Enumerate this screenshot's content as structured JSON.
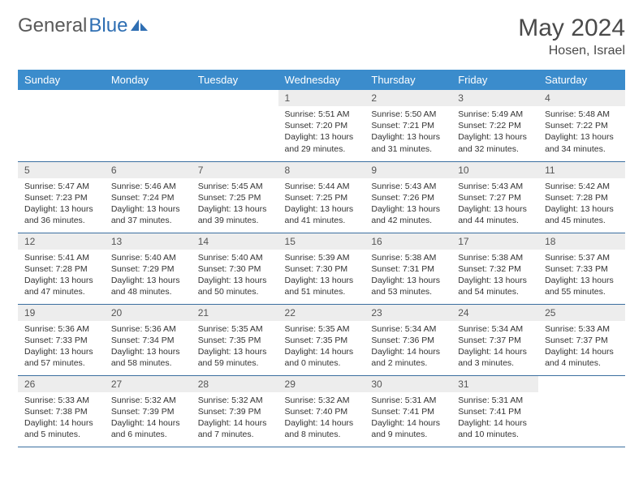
{
  "logo": {
    "part1": "General",
    "part2": "Blue"
  },
  "title": "May 2024",
  "location": "Hosen, Israel",
  "colors": {
    "header_bg": "#3b8ccc",
    "header_text": "#ffffff",
    "daynum_bg": "#ededed",
    "row_border": "#3b6fa0",
    "logo_gray": "#5a5a5a",
    "logo_blue": "#2f6fb3"
  },
  "typography": {
    "title_fontsize": 30,
    "location_fontsize": 16,
    "dayheader_fontsize": 13,
    "daynum_fontsize": 12,
    "daytext_fontsize": 10.5
  },
  "day_headers": [
    "Sunday",
    "Monday",
    "Tuesday",
    "Wednesday",
    "Thursday",
    "Friday",
    "Saturday"
  ],
  "weeks": [
    [
      null,
      null,
      null,
      {
        "n": "1",
        "sunrise": "5:51 AM",
        "sunset": "7:20 PM",
        "dl_h": 13,
        "dl_m": 29
      },
      {
        "n": "2",
        "sunrise": "5:50 AM",
        "sunset": "7:21 PM",
        "dl_h": 13,
        "dl_m": 31
      },
      {
        "n": "3",
        "sunrise": "5:49 AM",
        "sunset": "7:22 PM",
        "dl_h": 13,
        "dl_m": 32
      },
      {
        "n": "4",
        "sunrise": "5:48 AM",
        "sunset": "7:22 PM",
        "dl_h": 13,
        "dl_m": 34
      }
    ],
    [
      {
        "n": "5",
        "sunrise": "5:47 AM",
        "sunset": "7:23 PM",
        "dl_h": 13,
        "dl_m": 36
      },
      {
        "n": "6",
        "sunrise": "5:46 AM",
        "sunset": "7:24 PM",
        "dl_h": 13,
        "dl_m": 37
      },
      {
        "n": "7",
        "sunrise": "5:45 AM",
        "sunset": "7:25 PM",
        "dl_h": 13,
        "dl_m": 39
      },
      {
        "n": "8",
        "sunrise": "5:44 AM",
        "sunset": "7:25 PM",
        "dl_h": 13,
        "dl_m": 41
      },
      {
        "n": "9",
        "sunrise": "5:43 AM",
        "sunset": "7:26 PM",
        "dl_h": 13,
        "dl_m": 42
      },
      {
        "n": "10",
        "sunrise": "5:43 AM",
        "sunset": "7:27 PM",
        "dl_h": 13,
        "dl_m": 44
      },
      {
        "n": "11",
        "sunrise": "5:42 AM",
        "sunset": "7:28 PM",
        "dl_h": 13,
        "dl_m": 45
      }
    ],
    [
      {
        "n": "12",
        "sunrise": "5:41 AM",
        "sunset": "7:28 PM",
        "dl_h": 13,
        "dl_m": 47
      },
      {
        "n": "13",
        "sunrise": "5:40 AM",
        "sunset": "7:29 PM",
        "dl_h": 13,
        "dl_m": 48
      },
      {
        "n": "14",
        "sunrise": "5:40 AM",
        "sunset": "7:30 PM",
        "dl_h": 13,
        "dl_m": 50
      },
      {
        "n": "15",
        "sunrise": "5:39 AM",
        "sunset": "7:30 PM",
        "dl_h": 13,
        "dl_m": 51
      },
      {
        "n": "16",
        "sunrise": "5:38 AM",
        "sunset": "7:31 PM",
        "dl_h": 13,
        "dl_m": 53
      },
      {
        "n": "17",
        "sunrise": "5:38 AM",
        "sunset": "7:32 PM",
        "dl_h": 13,
        "dl_m": 54
      },
      {
        "n": "18",
        "sunrise": "5:37 AM",
        "sunset": "7:33 PM",
        "dl_h": 13,
        "dl_m": 55
      }
    ],
    [
      {
        "n": "19",
        "sunrise": "5:36 AM",
        "sunset": "7:33 PM",
        "dl_h": 13,
        "dl_m": 57
      },
      {
        "n": "20",
        "sunrise": "5:36 AM",
        "sunset": "7:34 PM",
        "dl_h": 13,
        "dl_m": 58
      },
      {
        "n": "21",
        "sunrise": "5:35 AM",
        "sunset": "7:35 PM",
        "dl_h": 13,
        "dl_m": 59
      },
      {
        "n": "22",
        "sunrise": "5:35 AM",
        "sunset": "7:35 PM",
        "dl_h": 14,
        "dl_m": 0
      },
      {
        "n": "23",
        "sunrise": "5:34 AM",
        "sunset": "7:36 PM",
        "dl_h": 14,
        "dl_m": 2
      },
      {
        "n": "24",
        "sunrise": "5:34 AM",
        "sunset": "7:37 PM",
        "dl_h": 14,
        "dl_m": 3
      },
      {
        "n": "25",
        "sunrise": "5:33 AM",
        "sunset": "7:37 PM",
        "dl_h": 14,
        "dl_m": 4
      }
    ],
    [
      {
        "n": "26",
        "sunrise": "5:33 AM",
        "sunset": "7:38 PM",
        "dl_h": 14,
        "dl_m": 5
      },
      {
        "n": "27",
        "sunrise": "5:32 AM",
        "sunset": "7:39 PM",
        "dl_h": 14,
        "dl_m": 6
      },
      {
        "n": "28",
        "sunrise": "5:32 AM",
        "sunset": "7:39 PM",
        "dl_h": 14,
        "dl_m": 7
      },
      {
        "n": "29",
        "sunrise": "5:32 AM",
        "sunset": "7:40 PM",
        "dl_h": 14,
        "dl_m": 8
      },
      {
        "n": "30",
        "sunrise": "5:31 AM",
        "sunset": "7:41 PM",
        "dl_h": 14,
        "dl_m": 9
      },
      {
        "n": "31",
        "sunrise": "5:31 AM",
        "sunset": "7:41 PM",
        "dl_h": 14,
        "dl_m": 10
      },
      null
    ]
  ],
  "labels": {
    "sunrise": "Sunrise:",
    "sunset": "Sunset:",
    "daylight": "Daylight:",
    "hours": "hours",
    "and": "and",
    "minutes": "minutes."
  }
}
